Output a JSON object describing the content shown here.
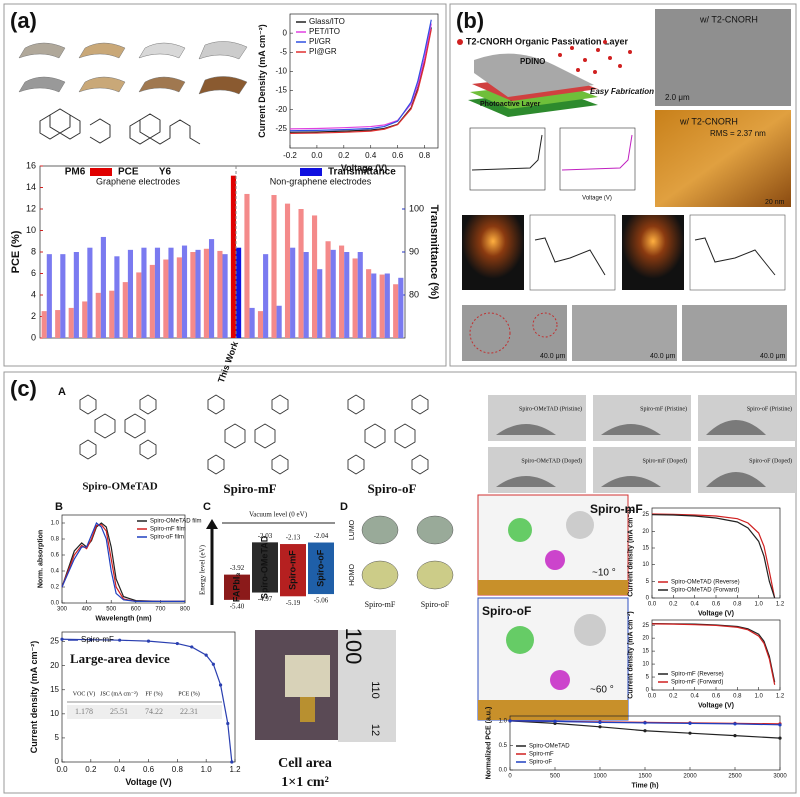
{
  "panels": {
    "a": {
      "label": "(a)",
      "molecules": [
        "PM6",
        "Y6"
      ],
      "jv": {
        "type": "line",
        "xlabel": "Voltage (V)",
        "ylabel": "Current Density (mA cm⁻²)",
        "x": [
          -0.2,
          0.0,
          0.2,
          0.4,
          0.5,
          0.6,
          0.7,
          0.75,
          0.8,
          0.85
        ],
        "series": [
          {
            "name": "Glass/ITO",
            "color": "#222222",
            "values": [
              -25.9,
              -25.8,
              -25.6,
              -25.3,
              -24.9,
              -23.8,
              -19.5,
              -14.5,
              -7.5,
              1.5
            ]
          },
          {
            "name": "PET/ITO",
            "color": "#e040e0",
            "values": [
              -25.0,
              -24.9,
              -24.7,
              -24.4,
              -24.0,
              -22.8,
              -18.5,
              -13.5,
              -6.5,
              2.5
            ]
          },
          {
            "name": "PI/GR",
            "color": "#3050e0",
            "values": [
              -25.5,
              -25.4,
              -25.2,
              -24.9,
              -24.4,
              -23.0,
              -18.0,
              -12.5,
              -5.0,
              3.5
            ]
          },
          {
            "name": "PI@GR",
            "color": "#e03030",
            "values": [
              -26.2,
              -26.1,
              -25.9,
              -25.6,
              -25.1,
              -23.9,
              -19.8,
              -15.0,
              -8.0,
              1.0
            ]
          }
        ],
        "xlim": [
          -0.2,
          0.9
        ],
        "ylim": [
          -30,
          5
        ],
        "xticks": [
          -0.2,
          {
            "value": 0,
            "label": "0.0"
          },
          0.2,
          0.4,
          0.6,
          0.8
        ],
        "yticks": [
          -25,
          -20,
          -15,
          -10,
          -5,
          0
        ],
        "legend": "top-left"
      },
      "bars": {
        "type": "bar",
        "ylabel": "PCE (%)",
        "y2label": "Transmittance (%)",
        "annotations": [
          "Graphene electrodes",
          "Non-graphene electrodes"
        ],
        "highlight_category": "This Work",
        "categories": [
          null,
          null,
          null,
          null,
          null,
          null,
          null,
          null,
          null,
          null,
          null,
          null,
          null,
          null,
          "This Work",
          null,
          null,
          null,
          null,
          null,
          null,
          null,
          null,
          null,
          null,
          null,
          null
        ],
        "series": [
          {
            "name": "PCE",
            "color": "#f48a8a",
            "highlight_color": "#e00000",
            "values": [
              2.5,
              2.6,
              2.8,
              3.4,
              4.2,
              4.4,
              5.2,
              6.1,
              6.8,
              7.3,
              7.5,
              8.0,
              8.3,
              8.1,
              15.1,
              13.4,
              2.5,
              13.3,
              12.5,
              12.0,
              11.4,
              9.0,
              8.6,
              7.4,
              6.4,
              5.9,
              5.0
            ]
          },
          {
            "name": "Transmittance",
            "color": "#7a7af0",
            "highlight_color": "#1010e0",
            "axis": "y2",
            "values": [
              89.5,
              89.5,
              90,
              91,
              93.5,
              89,
              90.5,
              91,
              91,
              91,
              91.5,
              90.5,
              93,
              89.5,
              91,
              77,
              89.5,
              77.5,
              91,
              90,
              86,
              90.5,
              90,
              90,
              85,
              85,
              84
            ]
          }
        ],
        "ylim": [
          0,
          16
        ],
        "yticks": [
          0,
          2,
          4,
          6,
          8,
          10,
          12,
          14,
          16
        ],
        "y2lim": [
          70,
          110
        ],
        "y2ticks": [
          80,
          90,
          100
        ]
      }
    },
    "b": {
      "label": "(b)",
      "title": "T2-CNORH Organic Passivation Layer",
      "layers": [
        "PDINO",
        "Photoactive Layer"
      ],
      "note": "Easy Fabrication",
      "sem": [
        "w/ T2-CNORH",
        "2.0 μm"
      ],
      "afm": [
        "w/ T2-CNORH",
        "RMS = 2.37 nm",
        "20 nm"
      ],
      "jv_xlabel": "Voltage (V)",
      "micrographs": [
        "40.0 μm",
        "40.0 μm",
        "40.0 μm"
      ]
    },
    "c": {
      "label": "(c)",
      "subpanels": [
        "A",
        "B",
        "C",
        "D"
      ],
      "molecules": [
        "Spiro-OMeTAD",
        "Spiro-mF",
        "Spiro-oF"
      ],
      "contact_angle": [
        "Spiro-OMeTAD (Pristine)",
        "Spiro-mF (Pristine)",
        "Spiro-oF (Pristine)",
        "Spiro-OMeTAD (Doped)",
        "Spiro-mF (Doped)",
        "Spiro-oF (Doped)"
      ],
      "absorption": {
        "type": "line",
        "xlabel": "Wavelength (nm)",
        "ylabel": "Norm. absorption",
        "x": [
          300,
          350,
          380,
          400,
          420,
          440,
          460,
          480,
          500,
          520,
          550,
          600,
          700,
          800
        ],
        "series": [
          {
            "name": "Spiro-OMeTAD film",
            "color": "#222222",
            "values": [
              0.2,
              0.65,
              0.75,
              0.7,
              0.78,
              0.95,
              1.0,
              0.95,
              0.7,
              0.3,
              0.08,
              0.03,
              0.02,
              0.02
            ]
          },
          {
            "name": "Spiro-mF film",
            "color": "#d02020",
            "values": [
              0.2,
              0.6,
              0.72,
              0.68,
              0.8,
              0.97,
              0.98,
              0.9,
              0.55,
              0.2,
              0.05,
              0.02,
              0.02,
              0.02
            ]
          },
          {
            "name": "Spiro-oF film",
            "color": "#2040c0",
            "values": [
              0.2,
              0.55,
              0.7,
              0.7,
              0.85,
              1.0,
              0.95,
              0.8,
              0.4,
              0.12,
              0.04,
              0.02,
              0.02,
              0.02
            ]
          }
        ],
        "xlim": [
          300,
          800
        ],
        "ylim": [
          0,
          1.1
        ],
        "xticks": [
          300,
          400,
          500,
          600,
          700,
          800
        ],
        "yticks": [
          {
            "value": 0,
            "label": "0.0"
          },
          0.2,
          0.4,
          0.6,
          0.8,
          {
            "value": 1,
            "label": "1.0"
          }
        ],
        "legend": "top-right"
      },
      "energy": {
        "type": "energy",
        "top_label": "Vacuum level (0 eV)",
        "ylabel": "Energy level (eV)",
        "categories": [
          "FAPbI₃",
          "Spiro-OMeTAD",
          "Spiro-mF",
          "Spiro-oF"
        ],
        "colors": [
          "#8b1a1a",
          "#2a2a2a",
          "#b52020",
          "#1f5fa8"
        ],
        "series": [
          {
            "values": [
              -3.92,
              -2.03,
              -2.13,
              -2.04
            ],
            "value_labels": [
              "-3.92",
              "-2.03",
              "-2.13",
              "-2.04"
            ]
          },
          {
            "values": [
              -5.4,
              -4.97,
              -5.19,
              -5.06
            ],
            "value_labels": [
              "-5.40",
              "-4.97",
              "-5.19",
              "-5.06"
            ]
          }
        ],
        "ylim": [
          -5.7,
          -1.6
        ]
      },
      "orbitals": [
        "LUMO",
        "HOMO",
        "Spiro-mF",
        "Spiro-oF"
      ],
      "md": [
        "Spiro-mF",
        "~10 °",
        "Spiro-oF",
        "~60 °"
      ],
      "jv_omet": {
        "type": "line",
        "xlabel": "Voltage (V)",
        "ylabel": "Current density (mA cm⁻²)",
        "x": [
          0,
          0.2,
          0.4,
          0.6,
          0.8,
          0.9,
          1.0,
          1.05,
          1.1,
          1.15
        ],
        "series": [
          {
            "name": "Spiro-OMeTAD (Reverse)",
            "color": "#d02020",
            "values": [
              25.2,
              25.1,
              24.9,
              24.6,
              23.8,
              22.5,
              19.5,
              15.5,
              8,
              0
            ]
          },
          {
            "name": "Spiro-OMeTAD (Forward)",
            "color": "#222222",
            "values": [
              25.0,
              24.9,
              24.6,
              24.0,
              22.8,
              21,
              17,
              12.5,
              5,
              0
            ]
          }
        ],
        "xlim": [
          0,
          1.2
        ],
        "ylim": [
          0,
          27
        ],
        "xticks": [
          {
            "value": 0,
            "label": "0.0"
          },
          0.2,
          0.4,
          0.6,
          0.8,
          {
            "value": 1,
            "label": "1.0"
          },
          1.2
        ],
        "yticks": [
          0,
          5,
          10,
          15,
          20,
          25
        ],
        "legend": "bottom-left"
      },
      "jv_mf": {
        "type": "line",
        "xlabel": "Voltage (V)",
        "ylabel": "Current density (mA cm⁻²)",
        "x": [
          0,
          0.2,
          0.4,
          0.6,
          0.8,
          0.9,
          1.0,
          1.05,
          1.1,
          1.15
        ],
        "series": [
          {
            "name": "Spiro-mF (Reverse)",
            "color": "#222222",
            "values": [
              25.6,
              25.5,
              25.4,
              25.1,
              24.5,
              23.6,
              21.5,
              18.8,
              13,
              3
            ]
          },
          {
            "name": "Spiro-mF (Forward)",
            "color": "#d02020",
            "values": [
              25.5,
              25.4,
              25.2,
              24.9,
              24.2,
              23.2,
              20.8,
              18,
              12,
              2
            ]
          }
        ],
        "xlim": [
          0,
          1.2
        ],
        "ylim": [
          0,
          27
        ],
        "xticks": [
          {
            "value": 0,
            "label": "0.0"
          },
          0.2,
          0.4,
          0.6,
          0.8,
          {
            "value": 1,
            "label": "1.0"
          },
          1.2
        ],
        "yticks": [
          0,
          5,
          10,
          15,
          20,
          25
        ],
        "legend": "bottom-left"
      },
      "stability": {
        "type": "line",
        "xlabel": "Time (h)",
        "ylabel": "Normalized PCE (a.u.)",
        "x": [
          0,
          500,
          1000,
          1500,
          2000,
          2500,
          3000
        ],
        "series": [
          {
            "name": "Spiro-OMeTAD",
            "color": "#222222",
            "values": [
              1,
              0.95,
              0.88,
              0.8,
              0.75,
              0.7,
              0.65
            ]
          },
          {
            "name": "Spiro-mF",
            "color": "#d02020",
            "values": [
              1,
              0.99,
              0.98,
              0.97,
              0.96,
              0.95,
              0.94
            ]
          },
          {
            "name": "Spiro-oF",
            "color": "#2040c0",
            "values": [
              1,
              0.99,
              0.97,
              0.96,
              0.95,
              0.94,
              0.92
            ]
          }
        ],
        "xlim": [
          0,
          3000
        ],
        "ylim": [
          0,
          1.1
        ],
        "xticks": [
          0,
          500,
          1000,
          1500,
          2000,
          2500,
          3000
        ],
        "yticks": [
          {
            "value": 0,
            "label": "0.0"
          },
          0.5,
          {
            "value": 1,
            "label": "1.0"
          }
        ],
        "legend": "bottom-left",
        "markers": true
      },
      "large_area": {
        "type": "line",
        "annotation": "Large-area device",
        "xlabel": "Voltage (V)",
        "ylabel": "Current density (mA cm⁻²)",
        "x": [
          0,
          0.2,
          0.4,
          0.6,
          0.8,
          0.9,
          1.0,
          1.05,
          1.1,
          1.15,
          1.178
        ],
        "series": [
          {
            "name": "Spiro-mF",
            "color": "#2a3fb0",
            "values": [
              25.5,
              25.4,
              25.3,
              25.1,
              24.6,
              23.9,
              22.2,
              20.3,
              16,
              8,
              0
            ]
          }
        ],
        "xlim": [
          0,
          1.2
        ],
        "ylim": [
          0,
          27
        ],
        "xticks": [
          {
            "value": 0,
            "label": "0.0"
          },
          0.2,
          0.4,
          0.6,
          0.8,
          {
            "value": 1,
            "label": "1.0"
          },
          1.2
        ],
        "yticks": [
          0,
          5,
          10,
          15,
          20,
          25
        ],
        "legend": "top-left",
        "markers": true,
        "table": {
          "headers": [
            "VOC (V)",
            "JSC (mA cm⁻²)",
            "FF (%)",
            "PCE (%)"
          ],
          "row": [
            "1.178",
            "25.51",
            "74.22",
            "22.31"
          ]
        }
      },
      "photo": {
        "ruler": [
          "100",
          "110",
          "12"
        ],
        "caption": [
          "Cell area",
          "1×1 cm²"
        ]
      }
    }
  }
}
